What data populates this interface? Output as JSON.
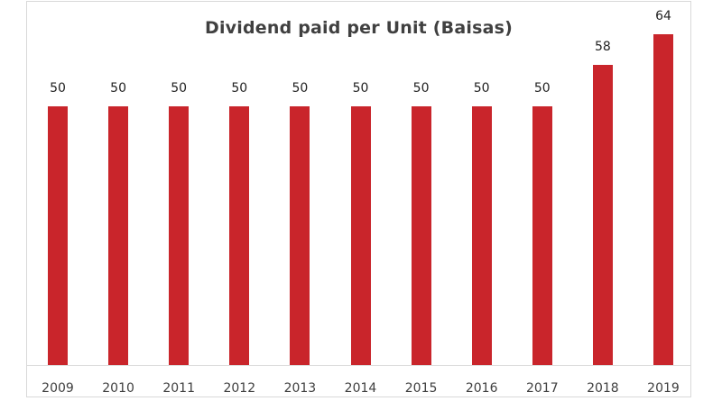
{
  "chart_data": {
    "type": "bar",
    "title": "Dividend paid per Unit (Baisas)",
    "xlabel": "",
    "ylabel": "",
    "categories": [
      "2009",
      "2010",
      "2011",
      "2012",
      "2013",
      "2014",
      "2015",
      "2016",
      "2017",
      "2018",
      "2019"
    ],
    "values": [
      50,
      50,
      50,
      50,
      50,
      50,
      50,
      50,
      50,
      58,
      64
    ],
    "data_labels": true,
    "grid": false,
    "legend": null,
    "ylim": [
      0,
      70
    ],
    "bar_color": "#c9252b"
  }
}
